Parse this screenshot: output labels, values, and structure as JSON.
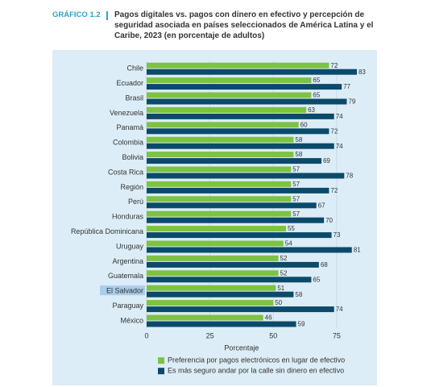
{
  "chart_data": {
    "type": "hbar",
    "label": "GRÁFICO 1.2",
    "title": "Pagos digitales vs. pagos con dinero en efectivo y percepción de seguridad asociada en países seleccionados de América Latina y el Caribe, 2023 (en porcentaje de adultos)",
    "xlabel": "Porcentaje",
    "categories": [
      "Chile",
      "Ecuador",
      "Brasil",
      "Venezuela",
      "Panamá",
      "Colombia",
      "Bolivia",
      "Costa Rica",
      "Región",
      "Perú",
      "Honduras",
      "República Dominicana",
      "Uruguay",
      "Argentina",
      "Guatemala",
      "El Salvador",
      "Paraguay",
      "México"
    ],
    "highlight_index": 15,
    "series": [
      {
        "name": "Preferencia por pagos electrónicos en lugar de efectivo",
        "color": "#7dc242",
        "values": [
          72,
          65,
          65,
          63,
          60,
          58,
          58,
          57,
          57,
          57,
          57,
          55,
          54,
          52,
          52,
          51,
          50,
          46
        ]
      },
      {
        "name": "Es más seguro andar por la calle sin dinero en efectivo",
        "color": "#0b4a6a",
        "values": [
          83,
          77,
          79,
          74,
          72,
          74,
          69,
          78,
          72,
          67,
          70,
          73,
          81,
          68,
          65,
          58,
          74,
          59
        ]
      }
    ],
    "xlim": [
      0,
      90
    ],
    "xticks": [
      0,
      25,
      50,
      75
    ],
    "grid": true
  }
}
